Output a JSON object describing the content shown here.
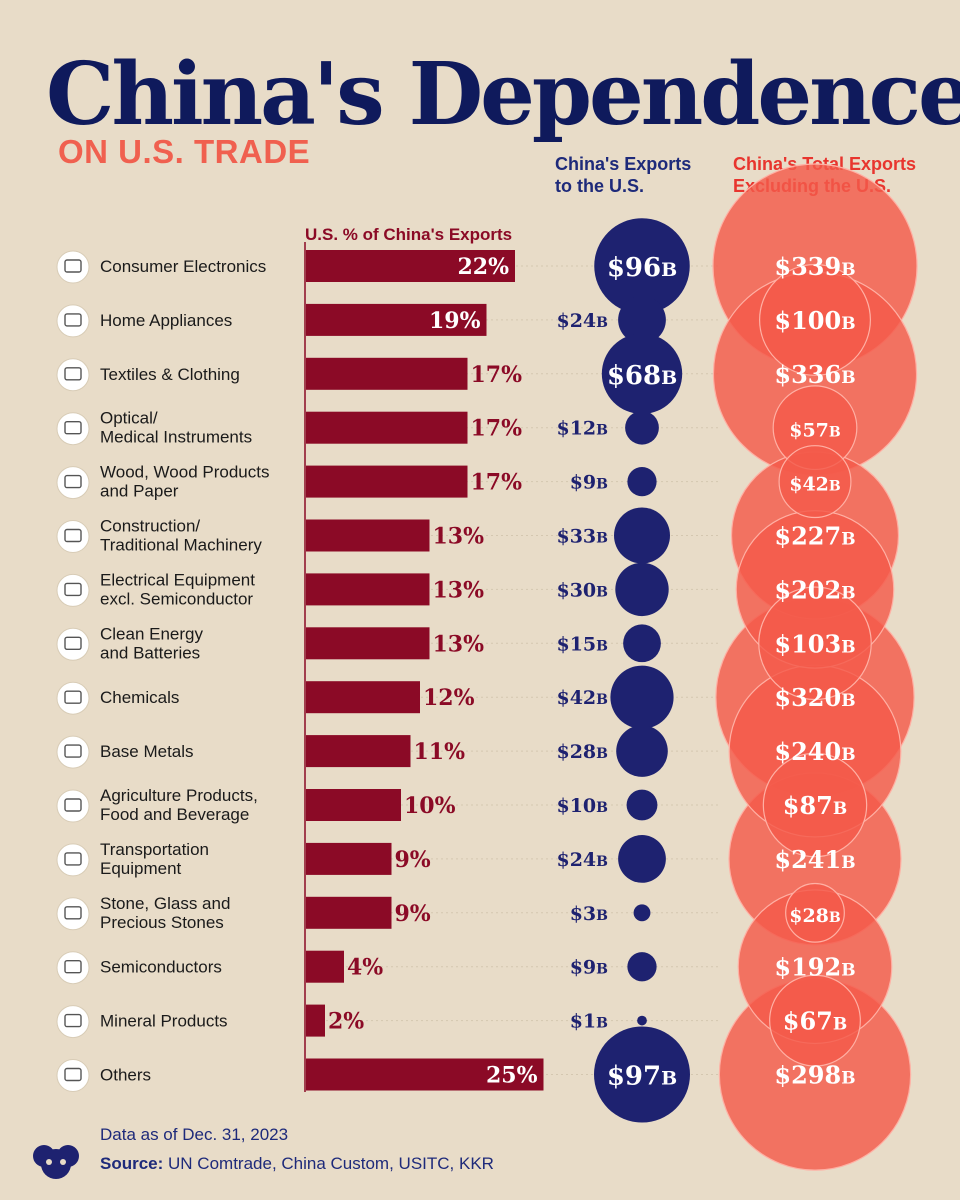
{
  "header": {
    "title": "China's Dependence",
    "subtitle": "ON U.S. TRADE",
    "col_us_exports": [
      "China's Exports",
      "to the U.S."
    ],
    "col_total_exports": [
      "China's Total Exports",
      "Excluding the U.S."
    ],
    "col_pct": "U.S. % of China's Exports"
  },
  "footer": {
    "date": "Data as of Dec. 31, 2023",
    "source_label": "Source:",
    "source_text": " UN Comtrade, China Custom, USITC, KKR"
  },
  "colors": {
    "background": "#e8dcc8",
    "title": "#0f1a5c",
    "subtitle": "#f0604f",
    "bar": "#8b0a26",
    "us_bubble": "#1e2270",
    "ex_bubble": "#f45a4a",
    "ex_header": "#e8352e"
  },
  "chart_data": {
    "type": "bar",
    "categories": [
      {
        "lines": [
          "Consumer Electronics"
        ],
        "icon": "tv-icon"
      },
      {
        "lines": [
          "Home Appliances"
        ],
        "icon": "sofa-icon"
      },
      {
        "lines": [
          "Textiles & Clothing"
        ],
        "icon": "shirt-icon"
      },
      {
        "lines": [
          "Optical/",
          "Medical Instruments"
        ],
        "icon": "wheelchair-icon"
      },
      {
        "lines": [
          "Wood, Wood Products",
          "and Paper"
        ],
        "icon": "logs-icon"
      },
      {
        "lines": [
          "Construction/",
          "Traditional Machinery"
        ],
        "icon": "crane-icon"
      },
      {
        "lines": [
          "Electrical Equipment",
          "excl. Semiconductor"
        ],
        "icon": "outlet-icon"
      },
      {
        "lines": [
          "Clean Energy",
          "and Batteries"
        ],
        "icon": "battery-icon"
      },
      {
        "lines": [
          "Chemicals"
        ],
        "icon": "atom-icon"
      },
      {
        "lines": [
          "Base Metals"
        ],
        "icon": "metal-bars-icon"
      },
      {
        "lines": [
          "Agriculture Products,",
          "Food and Beverage"
        ],
        "icon": "food-can-icon"
      },
      {
        "lines": [
          "Transportation",
          "Equipment"
        ],
        "icon": "car-icon"
      },
      {
        "lines": [
          "Stone, Glass and",
          "Precious Stones"
        ],
        "icon": "window-icon"
      },
      {
        "lines": [
          "Semiconductors"
        ],
        "icon": "chip-icon"
      },
      {
        "lines": [
          "Mineral Products"
        ],
        "icon": "crystal-icon"
      },
      {
        "lines": [
          "Others"
        ],
        "icon": "boxes-icon"
      }
    ],
    "series": [
      {
        "name": "U.S. % of China's Exports",
        "values": [
          22,
          19,
          17,
          17,
          17,
          13,
          13,
          13,
          12,
          11,
          10,
          9,
          9,
          4,
          2,
          25
        ],
        "unit": "%"
      },
      {
        "name": "China's Exports to the U.S.",
        "values": [
          96,
          24,
          68,
          12,
          9,
          33,
          30,
          15,
          42,
          28,
          10,
          24,
          3,
          9,
          1,
          97
        ],
        "unit": "B"
      },
      {
        "name": "China's Total Exports Excluding the U.S.",
        "values": [
          339,
          100,
          336,
          57,
          42,
          227,
          202,
          103,
          320,
          240,
          87,
          241,
          28,
          192,
          67,
          298
        ],
        "unit": "B"
      }
    ]
  }
}
